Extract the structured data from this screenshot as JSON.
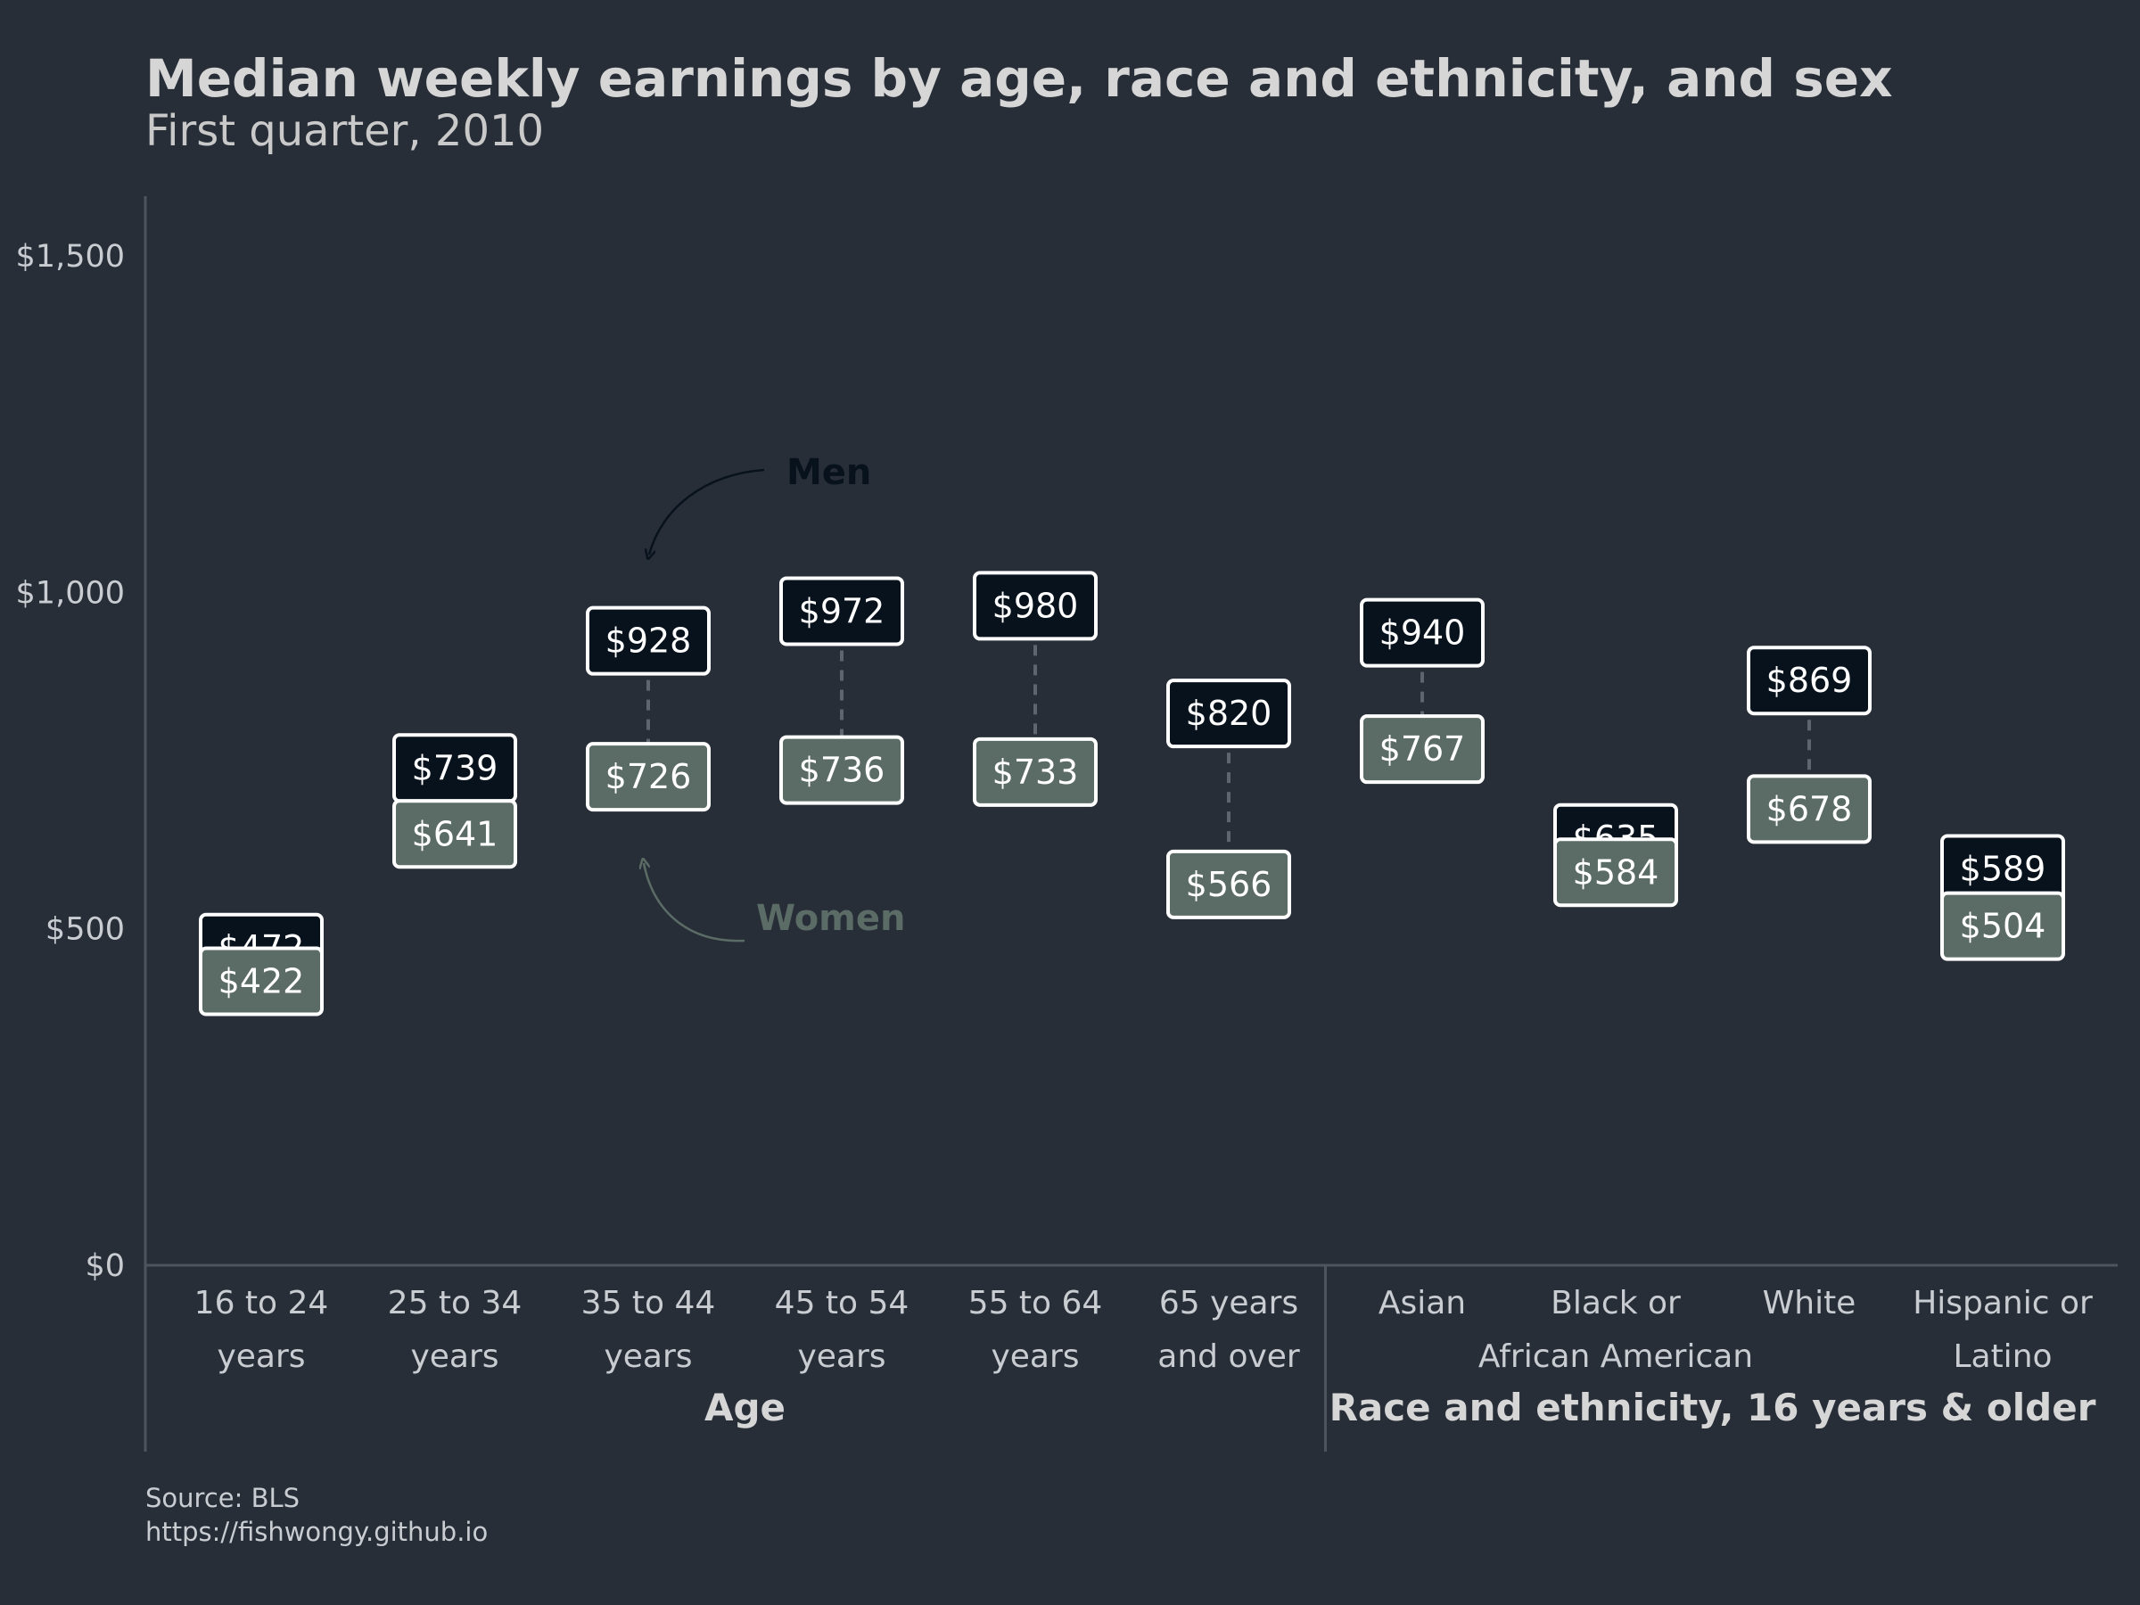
{
  "title": "Median weekly earnings by age, race and ethnicity, and sex",
  "subtitle": "First quarter, 2010",
  "source_line1": "Source: BLS",
  "source_line2": "https://fishwongy.github.io",
  "annotations": {
    "men": "Men",
    "women": "Women"
  },
  "colors": {
    "background": "#272e38",
    "men": "#08121c",
    "women": "#5b6b65",
    "label_border": "#ffffff",
    "axis": "#4d545d",
    "connector": "#5e656e"
  },
  "chart_data": {
    "type": "dot",
    "ylim": [
      0,
      1600
    ],
    "y_ticks": [
      0,
      500,
      1000,
      1500
    ],
    "y_tick_labels": [
      "$0",
      "$500",
      "$1,000",
      "$1,500"
    ],
    "groups": [
      {
        "label": "Age",
        "categories": 6
      },
      {
        "label": "Race and ethnicity, 16 years & older",
        "categories": 4
      }
    ],
    "categories": [
      [
        "16 to 24",
        "years"
      ],
      [
        "25 to 34",
        "years"
      ],
      [
        "35 to 44",
        "years"
      ],
      [
        "45 to 54",
        "years"
      ],
      [
        "55 to 64",
        "years"
      ],
      [
        "65 years",
        "and over"
      ],
      [
        "Asian",
        ""
      ],
      [
        "Black or",
        "African American"
      ],
      [
        "White",
        ""
      ],
      [
        "Hispanic or",
        "Latino"
      ]
    ],
    "series": [
      {
        "name": "Men",
        "values": [
          472,
          739,
          928,
          972,
          980,
          820,
          940,
          635,
          869,
          589
        ],
        "labels": [
          "$472",
          "$739",
          "$928",
          "$972",
          "$980",
          "$820",
          "$940",
          "$635",
          "$869",
          "$589"
        ]
      },
      {
        "name": "Women",
        "values": [
          422,
          641,
          726,
          736,
          733,
          566,
          767,
          584,
          678,
          504
        ],
        "labels": [
          "$422",
          "$641",
          "$726",
          "$736",
          "$733",
          "$566",
          "$767",
          "$584",
          "$678",
          "$504"
        ]
      }
    ]
  }
}
